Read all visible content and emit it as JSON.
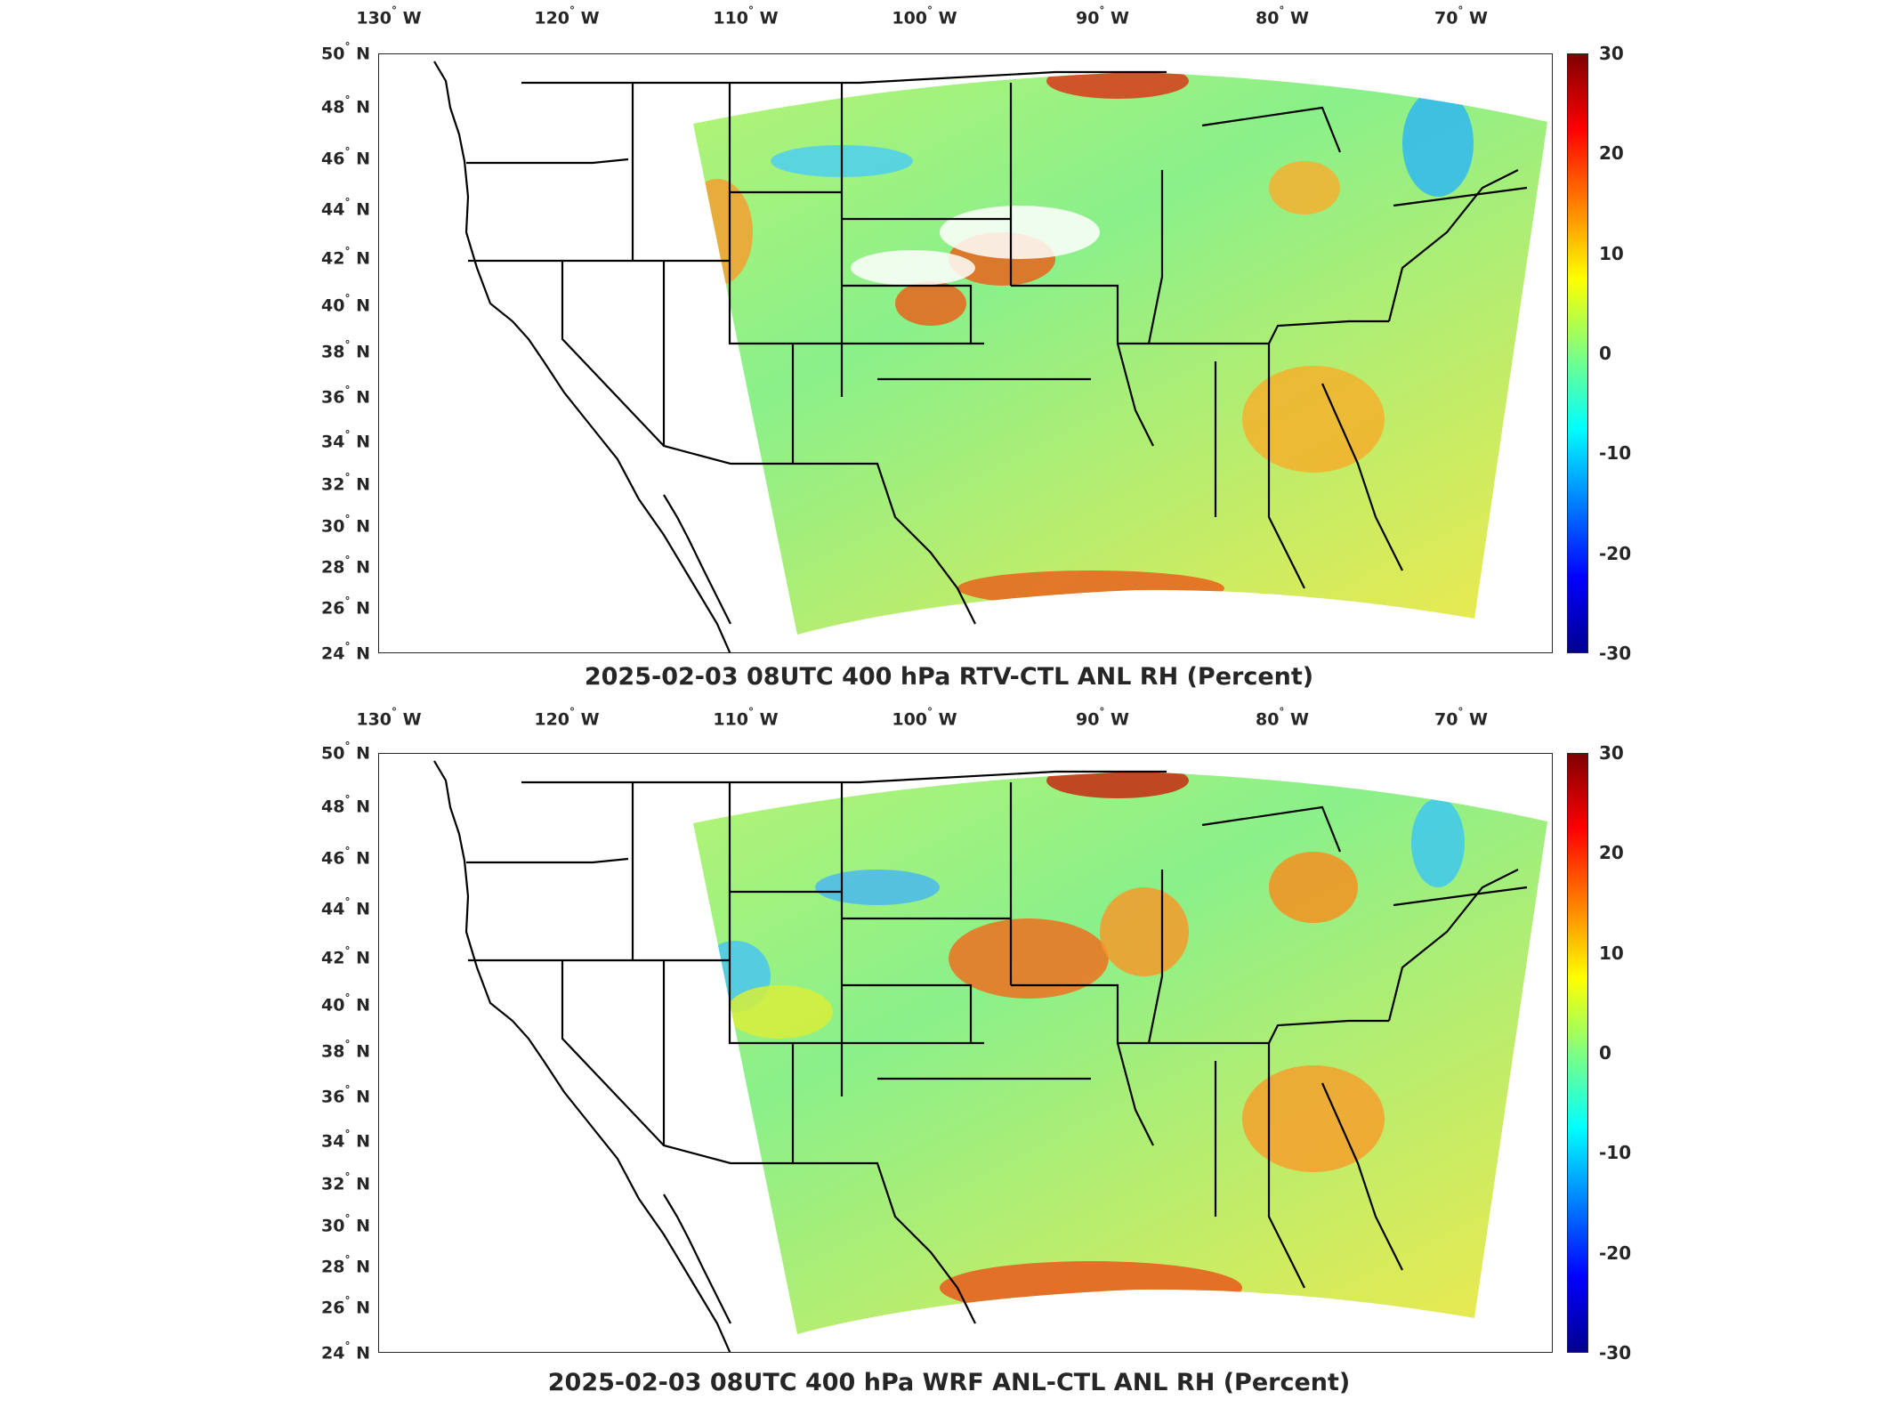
{
  "lon_ticks": [
    {
      "deg": "130",
      "hem": "W"
    },
    {
      "deg": "120",
      "hem": "W"
    },
    {
      "deg": "110",
      "hem": "W"
    },
    {
      "deg": "100",
      "hem": "W"
    },
    {
      "deg": "90",
      "hem": "W"
    },
    {
      "deg": "80",
      "hem": "W"
    },
    {
      "deg": "70",
      "hem": "W"
    }
  ],
  "lat_ticks": [
    {
      "deg": "50",
      "hem": "N"
    },
    {
      "deg": "48",
      "hem": "N"
    },
    {
      "deg": "46",
      "hem": "N"
    },
    {
      "deg": "44",
      "hem": "N"
    },
    {
      "deg": "42",
      "hem": "N"
    },
    {
      "deg": "40",
      "hem": "N"
    },
    {
      "deg": "38",
      "hem": "N"
    },
    {
      "deg": "36",
      "hem": "N"
    },
    {
      "deg": "34",
      "hem": "N"
    },
    {
      "deg": "32",
      "hem": "N"
    },
    {
      "deg": "30",
      "hem": "N"
    },
    {
      "deg": "28",
      "hem": "N"
    },
    {
      "deg": "26",
      "hem": "N"
    },
    {
      "deg": "24",
      "hem": "N"
    }
  ],
  "colorbar": {
    "ticks": [
      "30",
      "20",
      "10",
      "0",
      "-10",
      "-20",
      "-30"
    ],
    "range": [
      -30,
      30
    ],
    "colormap": [
      "#00008f",
      "#0000ff",
      "#007fff",
      "#00ffff",
      "#7fff7f",
      "#ffff00",
      "#ff7f00",
      "#ff0000",
      "#7f0000"
    ]
  },
  "panels": [
    {
      "title": "2025-02-03 08UTC 400 hPa RTV-CTL ANL RH (Percent)"
    },
    {
      "title": "2025-02-03 08UTC 400 hPa WRF ANL-CTL ANL RH (Percent)"
    }
  ],
  "map": {
    "lon_range": [
      -131,
      -64
    ],
    "lat_range": [
      24,
      50
    ],
    "border_color": "#000000",
    "background_value_color": "#7fff7f"
  }
}
